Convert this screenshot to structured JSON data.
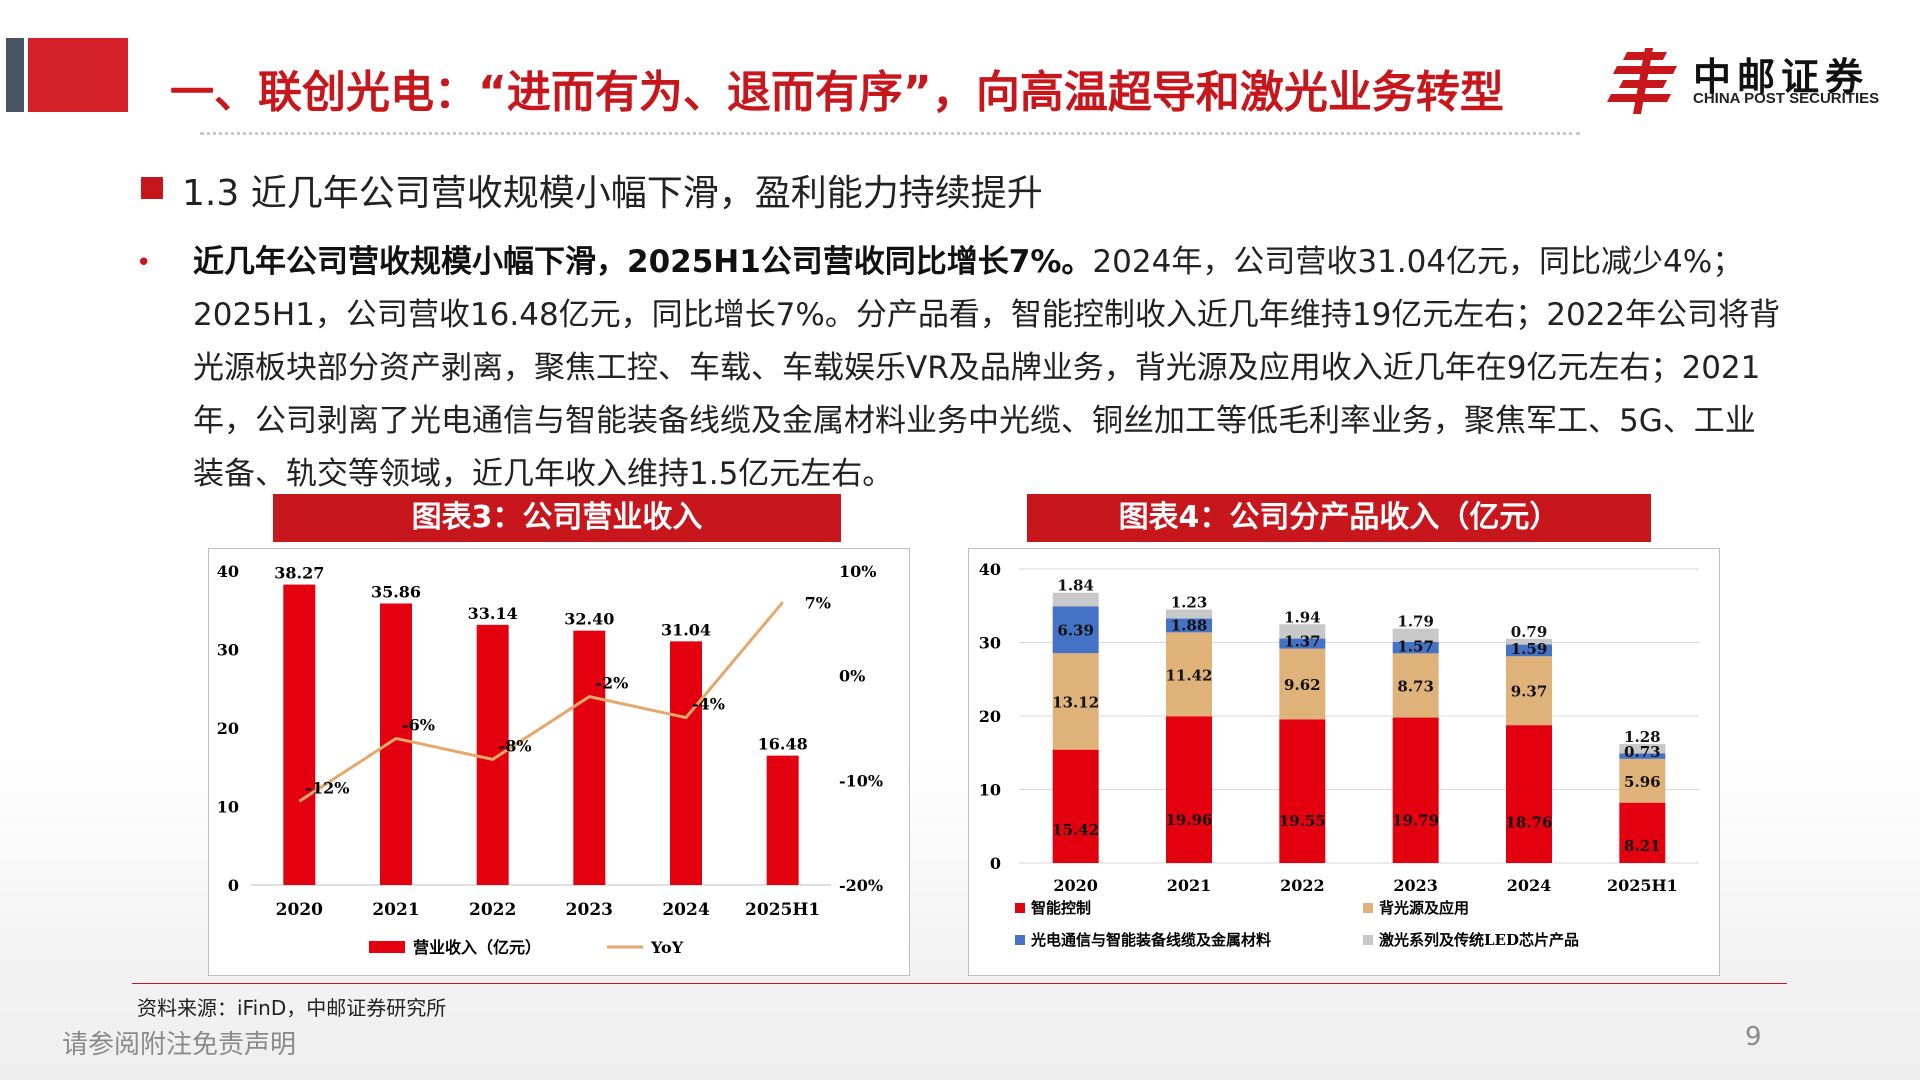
{
  "header": {
    "title": "一、联创光电：“进而有为、退而有序”，向高温超导和激光业务转型",
    "logo_cn": "中邮证券",
    "logo_en": "CHINA POST SECURITIES"
  },
  "section": {
    "subtitle": "1.3 近几年公司营收规模小幅下滑，盈利能力持续提升",
    "bullet": "•",
    "para_bold": "近几年公司营收规模小幅下滑，2025H1公司营收同比增长7%。",
    "para_rest": "2024年，公司营收31.04亿元，同比减少4%；2025H1，公司营收16.48亿元，同比增长7%。分产品看，智能控制收入近几年维持19亿元左右；2022年公司将背光源板块部分资产剥离，聚焦工控、车载、车载娱乐VR及品牌业务，背光源及应用收入近几年在9亿元左右；2021年，公司剥离了光电通信与智能装备线缆及金属材料业务中光缆、铜丝加工等低毛利率业务，聚焦军工、5G、工业装备、轨交等领域，近几年收入维持1.5亿元左右。"
  },
  "colors": {
    "accent": "#c8161d",
    "yoy_line": "#e5a86b",
    "series_red": "#e3000f",
    "series_tan": "#dfb27a",
    "series_blue": "#4472c4",
    "series_gray": "#c8c8c8"
  },
  "chart_data": [
    {
      "type": "bar",
      "title": "图表3：公司营业收入",
      "categories": [
        "2020",
        "2021",
        "2022",
        "2023",
        "2024",
        "2025H1"
      ],
      "series": [
        {
          "name": "营业收入（亿元）",
          "values": [
            38.27,
            35.86,
            33.14,
            32.4,
            31.04,
            16.48
          ],
          "labels": [
            "38.27",
            "35.86",
            "33.14",
            "32.40",
            "31.04",
            "16.48"
          ],
          "axis": "left"
        },
        {
          "name": "YoY",
          "type": "line",
          "values": [
            -12,
            -6,
            -8,
            -2,
            -4,
            7
          ],
          "labels": [
            "-12%",
            "-6%",
            "-8%",
            "-2%",
            "-4%",
            "7%"
          ],
          "axis": "right"
        }
      ],
      "ylim": [
        0,
        40
      ],
      "y_ticks": [
        "0",
        "10",
        "20",
        "30",
        "40"
      ],
      "y2lim": [
        -20,
        10
      ],
      "y2_ticks": [
        "-20%",
        "-10%",
        "0%",
        "10%"
      ],
      "grid": false,
      "legend": "bottom"
    },
    {
      "type": "bar",
      "stacked": true,
      "title": "图表4：公司分产品收入（亿元）",
      "categories": [
        "2020",
        "2021",
        "2022",
        "2023",
        "2024",
        "2025H1"
      ],
      "series": [
        {
          "name": "智能控制",
          "values": [
            15.42,
            19.96,
            19.55,
            19.79,
            18.76,
            8.21
          ],
          "labels": [
            "15.42",
            "19.96",
            "19.55",
            "19.79",
            "18.76",
            "8.21"
          ]
        },
        {
          "name": "背光源及应用",
          "values": [
            13.12,
            11.42,
            9.62,
            8.73,
            9.37,
            5.96
          ],
          "labels": [
            "13.12",
            "11.42",
            "9.62",
            "8.73",
            "9.37",
            "5.96"
          ]
        },
        {
          "name": "光电通信与智能装备线缆及金属材料",
          "values": [
            6.39,
            1.88,
            1.37,
            1.57,
            1.59,
            0.73
          ],
          "labels": [
            "6.39",
            "1.88",
            "1.37",
            "1.57",
            "1.59",
            "0.73"
          ]
        },
        {
          "name": "激光系列及传统LED芯片产品",
          "values": [
            1.84,
            1.23,
            1.94,
            1.79,
            0.79,
            1.28
          ],
          "labels": [
            "1.84",
            "1.23",
            "1.94",
            "1.79",
            "0.79",
            "1.28"
          ]
        }
      ],
      "ylim": [
        0,
        40
      ],
      "y_ticks": [
        "0",
        "10",
        "20",
        "30",
        "40"
      ],
      "grid": true,
      "legend": "bottom"
    }
  ],
  "footer": {
    "source": "资料来源：iFinD，中邮证券研究所",
    "disclaimer": "请参阅附注免责声明",
    "page": "9"
  }
}
